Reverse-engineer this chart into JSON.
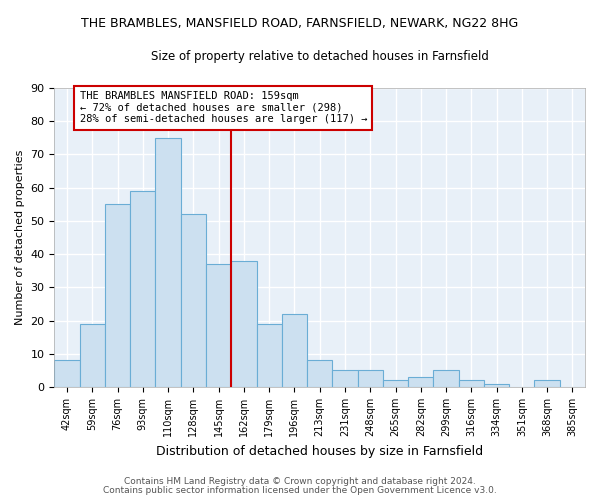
{
  "title": "THE BRAMBLES, MANSFIELD ROAD, FARNSFIELD, NEWARK, NG22 8HG",
  "subtitle": "Size of property relative to detached houses in Farnsfield",
  "xlabel": "Distribution of detached houses by size in Farnsfield",
  "ylabel": "Number of detached properties",
  "bin_labels": [
    "42sqm",
    "59sqm",
    "76sqm",
    "93sqm",
    "110sqm",
    "128sqm",
    "145sqm",
    "162sqm",
    "179sqm",
    "196sqm",
    "213sqm",
    "231sqm",
    "248sqm",
    "265sqm",
    "282sqm",
    "299sqm",
    "316sqm",
    "334sqm",
    "351sqm",
    "368sqm",
    "385sqm"
  ],
  "bar_heights": [
    8,
    19,
    55,
    59,
    75,
    52,
    37,
    38,
    19,
    22,
    8,
    5,
    5,
    2,
    3,
    5,
    2,
    1,
    0,
    2,
    0
  ],
  "bar_color": "#cce0f0",
  "bar_edge_color": "#6aadd5",
  "annotation_line_color": "#cc0000",
  "annotation_box_text": "THE BRAMBLES MANSFIELD ROAD: 159sqm\n← 72% of detached houses are smaller (298)\n28% of semi-detached houses are larger (117) →",
  "annotation_box_edge_color": "#cc0000",
  "ylim": [
    0,
    90
  ],
  "yticks": [
    0,
    10,
    20,
    30,
    40,
    50,
    60,
    70,
    80,
    90
  ],
  "footer_line1": "Contains HM Land Registry data © Crown copyright and database right 2024.",
  "footer_line2": "Contains public sector information licensed under the Open Government Licence v3.0.",
  "bg_color": "#ffffff",
  "plot_bg_color": "#e8f0f8",
  "grid_color": "#ffffff",
  "title_fontsize": 9,
  "subtitle_fontsize": 8.5,
  "annotation_fontsize": 7.5,
  "ylabel_fontsize": 8,
  "xlabel_fontsize": 9,
  "tick_fontsize": 7,
  "ytick_fontsize": 8,
  "footer_fontsize": 6.5,
  "line_x_index": 7
}
